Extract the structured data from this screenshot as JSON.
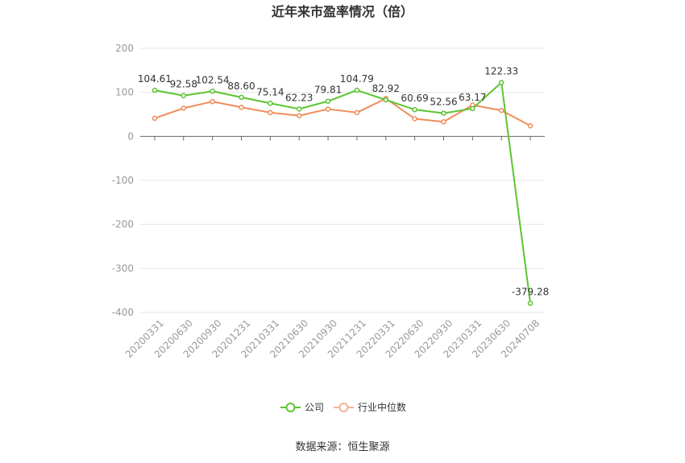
{
  "chart_data": {
    "type": "line",
    "title": "近年来市盈率情况（倍）",
    "categories": [
      "20200331",
      "20200630",
      "20200930",
      "20201231",
      "20210331",
      "20210630",
      "20210930",
      "20211231",
      "20220331",
      "20220630",
      "20220930",
      "20230331",
      "20230630",
      "20240708"
    ],
    "series": [
      {
        "name": "公司",
        "color": "#5cc531",
        "values": [
          104.61,
          92.58,
          102.54,
          88.6,
          75.14,
          62.23,
          79.81,
          104.79,
          82.92,
          60.69,
          52.56,
          63.17,
          122.33,
          -379.28
        ],
        "labels": [
          "104.61",
          "92.58",
          "102.54",
          "88.60",
          "75.14",
          "62.23",
          "79.81",
          "104.79",
          "82.92",
          "60.69",
          "52.56",
          "63.17",
          "122.33",
          "-379.28"
        ]
      },
      {
        "name": "行业中位数",
        "color": "#f08c5a",
        "values": [
          41,
          64,
          79,
          66,
          54,
          47,
          62,
          54,
          86,
          40,
          33,
          71,
          59,
          24
        ]
      }
    ],
    "yticks": [
      "200",
      "100",
      "0",
      "-100",
      "-200",
      "-300",
      "-400"
    ],
    "ylim": [
      -400,
      200
    ],
    "grid": true,
    "legend_position": "bottom"
  },
  "source_text": "数据来源：恒生聚源"
}
